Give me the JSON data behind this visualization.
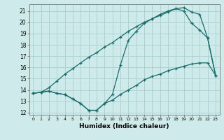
{
  "xlabel": "Humidex (Indice chaleur)",
  "bg_color": "#ceeaea",
  "grid_color": "#aacece",
  "line_color": "#1a6b6b",
  "xlim": [
    -0.5,
    23.5
  ],
  "ylim": [
    11.8,
    21.6
  ],
  "xticks": [
    0,
    1,
    2,
    3,
    4,
    5,
    6,
    7,
    8,
    9,
    10,
    11,
    12,
    13,
    14,
    15,
    16,
    17,
    18,
    19,
    20,
    21,
    22,
    23
  ],
  "yticks": [
    12,
    13,
    14,
    15,
    16,
    17,
    18,
    19,
    20,
    21
  ],
  "line1_x": [
    0,
    1,
    2,
    3,
    4,
    5,
    6,
    7,
    8,
    9,
    10,
    11,
    12,
    13,
    14,
    15,
    16,
    17,
    18,
    19,
    20,
    21,
    22,
    23
  ],
  "line1_y": [
    13.7,
    13.8,
    13.9,
    13.7,
    13.6,
    13.2,
    12.8,
    12.2,
    12.2,
    12.8,
    13.1,
    13.6,
    14.0,
    14.4,
    14.9,
    15.2,
    15.4,
    15.7,
    15.9,
    16.1,
    16.3,
    16.4,
    16.4,
    15.3
  ],
  "line2_x": [
    0,
    1,
    2,
    3,
    4,
    5,
    6,
    7,
    8,
    9,
    10,
    11,
    12,
    13,
    14,
    15,
    16,
    17,
    18,
    19,
    20,
    21,
    22,
    23
  ],
  "line2_y": [
    13.7,
    13.8,
    13.9,
    13.7,
    13.6,
    13.2,
    12.8,
    12.2,
    12.2,
    12.8,
    13.6,
    16.2,
    18.4,
    19.2,
    19.9,
    20.3,
    20.7,
    21.0,
    21.2,
    21.0,
    19.9,
    19.3,
    18.6,
    15.3
  ],
  "line3_x": [
    0,
    1,
    2,
    3,
    4,
    5,
    6,
    7,
    8,
    9,
    10,
    11,
    12,
    13,
    14,
    15,
    16,
    17,
    18,
    19,
    20,
    21,
    22,
    23
  ],
  "line3_y": [
    13.7,
    13.8,
    14.2,
    14.8,
    15.4,
    15.9,
    16.4,
    16.9,
    17.3,
    17.8,
    18.2,
    18.7,
    19.2,
    19.6,
    20.0,
    20.3,
    20.6,
    20.9,
    21.2,
    21.3,
    20.9,
    20.7,
    18.6,
    15.3
  ]
}
